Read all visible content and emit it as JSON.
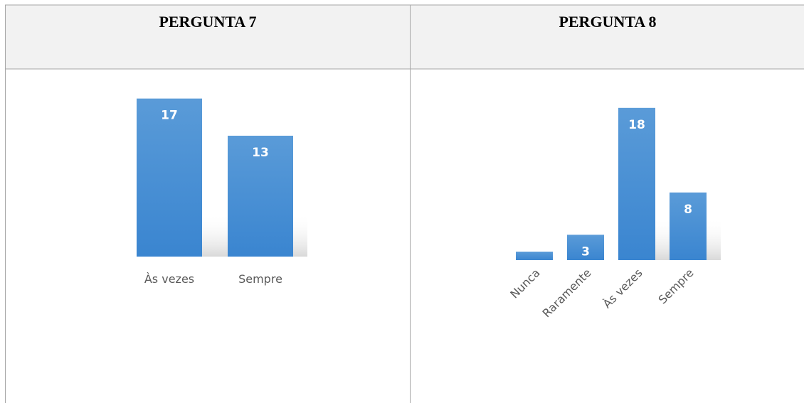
{
  "chart_data": [
    {
      "type": "bar",
      "title": "PERGUNTA 7",
      "categories": [
        "Às vezes",
        "Sempre"
      ],
      "values": [
        17,
        13
      ],
      "color": "#4a90d9"
    },
    {
      "type": "bar",
      "title": "PERGUNTA 8",
      "categories": [
        "Nunca",
        "Raramente",
        "Às vezes",
        "Sempre"
      ],
      "values": [
        1,
        3,
        18,
        8
      ],
      "value_labels": [
        null,
        "3",
        "18",
        "8"
      ],
      "color": "#4a90d9",
      "rotate_labels": true
    }
  ]
}
